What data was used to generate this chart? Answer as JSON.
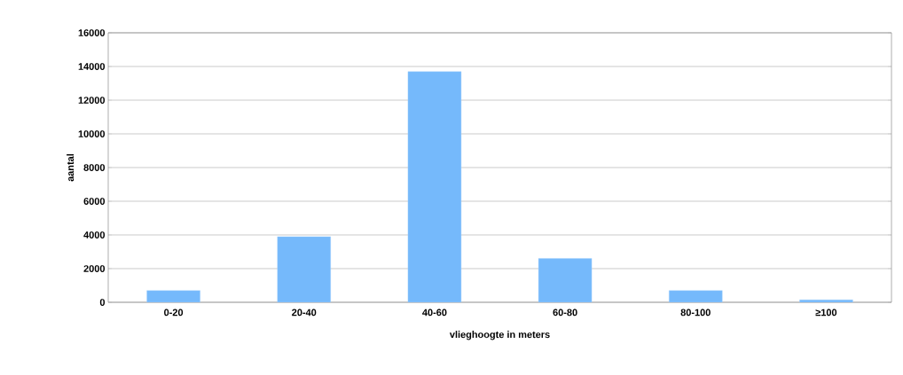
{
  "chart_data": {
    "type": "bar",
    "xlabel": "vlieghoogte in meters",
    "ylabel": "aantal",
    "categories": [
      "0-20",
      "20-40",
      "40-60",
      "60-80",
      "80-100",
      "≥100"
    ],
    "values": [
      700,
      3900,
      13700,
      2600,
      700,
      150
    ],
    "color": "#75b9fb",
    "ylim": [
      0,
      16000
    ],
    "yticks": [
      0,
      2000,
      4000,
      6000,
      8000,
      10000,
      12000,
      14000,
      16000
    ],
    "grid": "y"
  }
}
